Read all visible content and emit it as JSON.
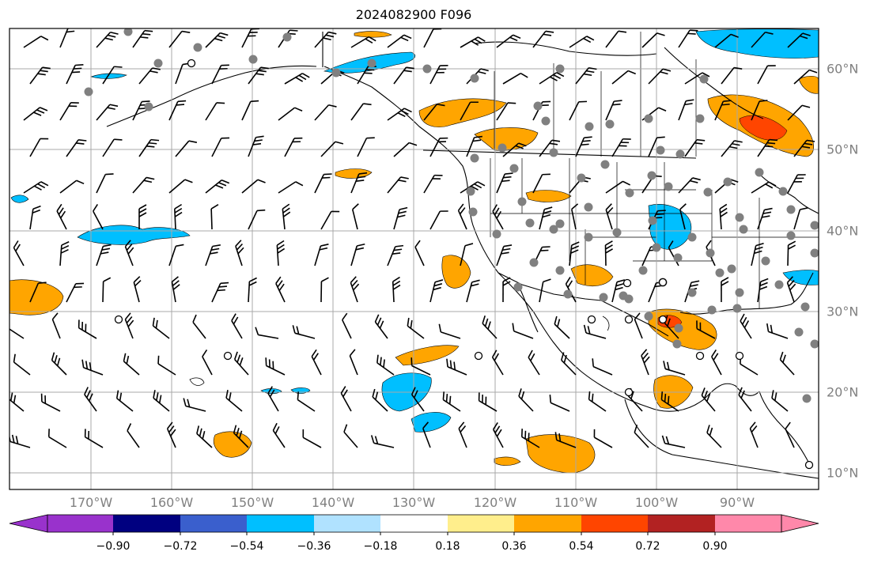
{
  "title": "2024082900 F096",
  "map": {
    "longitude_labels": [
      "170°W",
      "160°W",
      "150°W",
      "140°W",
      "130°W",
      "120°W",
      "110°W",
      "100°W",
      "90°W"
    ],
    "latitude_labels": [
      "60°N",
      "50°N",
      "40°N",
      "30°N",
      "20°N",
      "10°N"
    ],
    "gridlines": true,
    "features": [
      "coastlines",
      "country borders",
      "state borders",
      "wind barbs",
      "station markers",
      "shaded anomaly field"
    ]
  },
  "colorbar": {
    "tick_labels": [
      "−0.90",
      "−0.72",
      "−0.54",
      "−0.36",
      "−0.18",
      "0.18",
      "0.36",
      "0.54",
      "0.72",
      "0.90"
    ],
    "colors": [
      "#9932cc",
      "#000080",
      "#3a5fcd",
      "#00bfff",
      "#b0e2ff",
      "#ffffff",
      "#ffee8c",
      "#ffa500",
      "#ff4500",
      "#b22222",
      "#ff88aa"
    ],
    "extend": "both"
  }
}
